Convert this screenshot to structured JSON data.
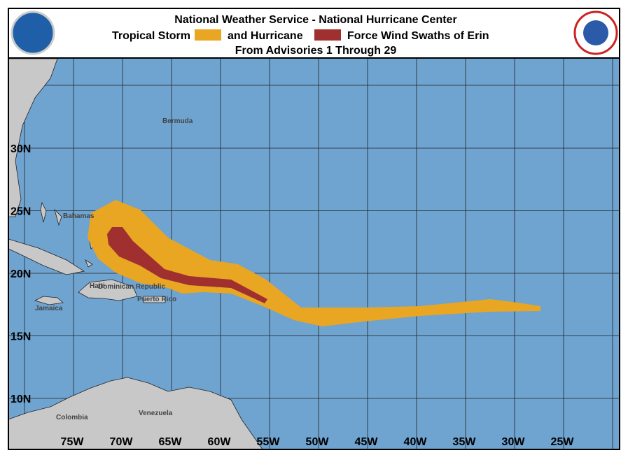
{
  "header": {
    "title": "National Weather Service - National Hurricane Center",
    "legend": {
      "tropical_storm": "Tropical Storm",
      "hurricane": "and Hurricane",
      "suffix": "Force Wind Swaths of Erin"
    },
    "subtitle": "From Advisories 1 Through 29"
  },
  "map": {
    "longitude_labels": [
      "75W",
      "70W",
      "65W",
      "60W",
      "55W",
      "50W",
      "45W",
      "40W",
      "35W",
      "30W",
      "25W"
    ],
    "latitude_labels": [
      "30N",
      "25N",
      "20N",
      "15N",
      "10N"
    ],
    "places": [
      "Bermuda",
      "Bahamas",
      "Dominican Republic",
      "Haiti",
      "Puerto Rico",
      "Jamaica",
      "Colombia",
      "Venezuela"
    ]
  }
}
